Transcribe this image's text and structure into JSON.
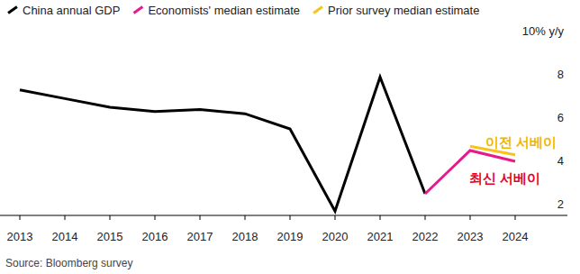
{
  "chart_data": {
    "type": "line",
    "categories": [
      "2013",
      "2014",
      "2015",
      "2016",
      "2017",
      "2018",
      "2019",
      "2020",
      "2021",
      "2022",
      "2023",
      "2024"
    ],
    "series": [
      {
        "name": "China annual GDP",
        "color": "#000000",
        "values": [
          7.8,
          7.4,
          7.0,
          6.8,
          6.9,
          6.7,
          6.0,
          2.2,
          8.4,
          3.0,
          null,
          null
        ]
      },
      {
        "name": "Economists' median estimate",
        "color": "#e8198b",
        "values": [
          null,
          null,
          null,
          null,
          null,
          null,
          null,
          null,
          null,
          3.0,
          5.0,
          4.5
        ]
      },
      {
        "name": "Prior survey median estimate",
        "color": "#f7c41d",
        "values": [
          null,
          null,
          null,
          null,
          null,
          null,
          null,
          null,
          null,
          null,
          5.2,
          4.8
        ]
      }
    ],
    "ylim": [
      2,
      10
    ],
    "yticks": [
      2,
      4,
      6,
      8,
      {
        "value": 10,
        "label": "10% y/y"
      }
    ],
    "grid": false,
    "legend": "top",
    "annotations": [
      {
        "text": "이전 서베이",
        "color": "#f0b400"
      },
      {
        "text": "최신 서베이",
        "color": "#e4002b"
      }
    ],
    "source": "Source: Bloomberg survey"
  }
}
